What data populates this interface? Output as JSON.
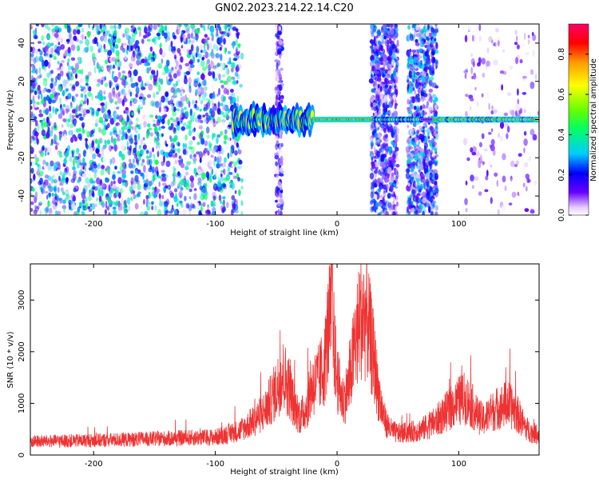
{
  "title": "GN02.2023.214.22.14.C20",
  "chart_data": [
    {
      "type": "heatmap",
      "title": "GN02.2023.214.22.14.C20",
      "xlabel": "Height of straight line (km)",
      "ylabel": "Frequency (Hz)",
      "xlim": [
        -252,
        166
      ],
      "ylim": [
        -50,
        50
      ],
      "xticks": [
        "-200",
        "-100",
        "0",
        "100"
      ],
      "yticks": [
        "-40",
        "-20",
        "0",
        "20",
        "40"
      ],
      "xtick_values": [
        -200,
        -100,
        0,
        100
      ],
      "ytick_values": [
        -40,
        -20,
        0,
        20,
        40
      ],
      "colorbar": {
        "label": "Normalized spectral amplitude",
        "range": [
          0,
          0.95
        ],
        "ticks": [
          "0.0",
          "0.2",
          "0.4",
          "0.6",
          "0.8"
        ],
        "tick_values": [
          0,
          0.2,
          0.4,
          0.6,
          0.8
        ],
        "colormap": [
          "#ffffff",
          "#e6ccff",
          "#6600ff",
          "#0000ff",
          "#00ccff",
          "#00ff66",
          "#66ff00",
          "#ffff00",
          "#ff9900",
          "#ff0000",
          "#ff0066"
        ]
      },
      "features": [
        {
          "name": "broadband noise",
          "x_range": [
            -252,
            -78
          ],
          "freq_range": [
            -50,
            50
          ],
          "amplitude": 0.15
        },
        {
          "name": "noise band",
          "x_range": [
            -50,
            -45
          ],
          "freq_range": [
            -50,
            50
          ],
          "amplitude": 0.08
        },
        {
          "name": "noise band",
          "x_range": [
            28,
            50
          ],
          "freq_range": [
            -50,
            50
          ],
          "amplitude": 0.1
        },
        {
          "name": "noise band",
          "x_range": [
            58,
            82
          ],
          "freq_range": [
            -50,
            50
          ],
          "amplitude": 0.12
        },
        {
          "name": "scattered noise",
          "x_range": [
            105,
            166
          ],
          "freq_range": [
            -50,
            50
          ],
          "amplitude": 0.05
        },
        {
          "name": "carrier",
          "x_range": [
            -85,
            166
          ],
          "freq_center": 0,
          "amplitude": 0.85
        }
      ]
    },
    {
      "type": "line",
      "xlabel": "Height of straight line (km)",
      "ylabel": "SNR (10 * v/v)",
      "xlim": [
        -252,
        166
      ],
      "ylim": [
        0,
        3700
      ],
      "xticks": [
        "-200",
        "-100",
        "0",
        "100"
      ],
      "yticks": [
        "0",
        "1000",
        "2000",
        "3000"
      ],
      "xtick_values": [
        -200,
        -100,
        0,
        100
      ],
      "ytick_values": [
        0,
        1000,
        2000,
        3000
      ],
      "color": "#ee3333",
      "envelope": {
        "x": [
          -252,
          -200,
          -150,
          -100,
          -80,
          -70,
          -60,
          -50,
          -45,
          -40,
          -35,
          -30,
          -25,
          -20,
          -15,
          -10,
          -8,
          -5,
          -3,
          0,
          5,
          10,
          15,
          20,
          25,
          30,
          35,
          40,
          45,
          50,
          60,
          70,
          80,
          90,
          100,
          105,
          110,
          115,
          120,
          125,
          130,
          135,
          140,
          145,
          150,
          155,
          160,
          166
        ],
        "y": [
          250,
          270,
          300,
          330,
          450,
          600,
          800,
          1200,
          1500,
          1300,
          900,
          700,
          900,
          1300,
          1400,
          1700,
          2200,
          2600,
          2200,
          1400,
          1000,
          1300,
          2100,
          2600,
          2500,
          1800,
          1000,
          600,
          450,
          400,
          420,
          480,
          600,
          800,
          1000,
          1050,
          950,
          750,
          650,
          750,
          850,
          900,
          950,
          850,
          700,
          500,
          420,
          380
        ]
      },
      "noise_amplitude": 0.45,
      "peak_max": 3700
    }
  ]
}
